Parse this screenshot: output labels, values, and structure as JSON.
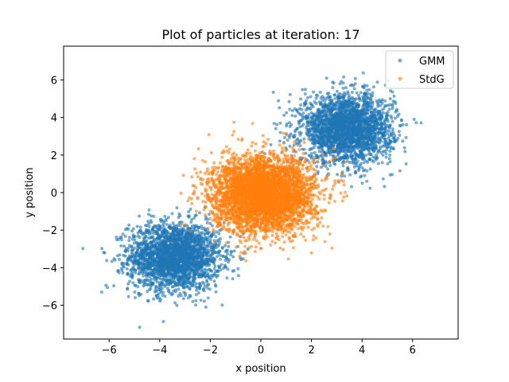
{
  "chart_data": {
    "type": "scatter",
    "title": "Plot of particles at iteration: 17",
    "xlabel": "x position",
    "ylabel": "y position",
    "xlim": [
      -7.8,
      7.8
    ],
    "ylim": [
      -7.8,
      7.8
    ],
    "xticks": [
      -6,
      -4,
      -2,
      0,
      2,
      4,
      6
    ],
    "yticks": [
      -6,
      -4,
      -2,
      0,
      2,
      4,
      6
    ],
    "xtick_labels": [
      "−6",
      "−4",
      "−2",
      "0",
      "2",
      "4",
      "6"
    ],
    "ytick_labels": [
      "−6",
      "−4",
      "−2",
      "0",
      "2",
      "4",
      "6"
    ],
    "grid": false,
    "legend_position": "top-right",
    "series": [
      {
        "name": "GMM",
        "color": "#1f77b4",
        "clusters": [
          {
            "center": [
              -3.4,
              -3.4
            ],
            "std": [
              0.9,
              0.9
            ],
            "count": 2500
          },
          {
            "center": [
              3.4,
              3.4
            ],
            "std": [
              0.9,
              0.9
            ],
            "count": 2500
          }
        ]
      },
      {
        "name": "StdG",
        "color": "#ff7f0e",
        "clusters": [
          {
            "center": [
              0.1,
              -0.1
            ],
            "std": [
              1.0,
              1.0
            ],
            "count": 4000
          }
        ]
      }
    ]
  }
}
